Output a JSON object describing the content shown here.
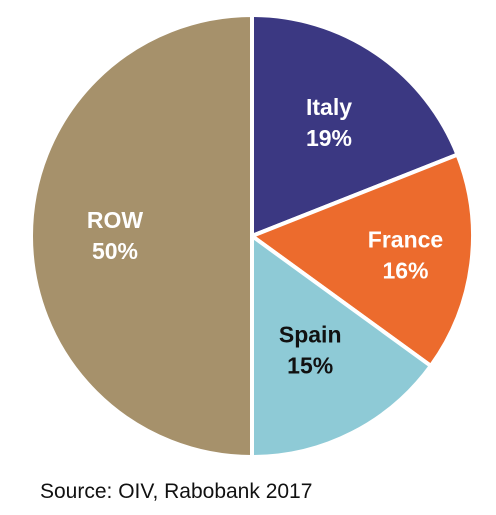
{
  "chart_data": {
    "type": "pie",
    "slices": [
      {
        "label": "Italy",
        "value": 19,
        "value_label": "19%",
        "color": "#3b3882",
        "label_color": "#ffffff"
      },
      {
        "label": "France",
        "value": 16,
        "value_label": "16%",
        "color": "#ec6b2d",
        "label_color": "#ffffff"
      },
      {
        "label": "Spain",
        "value": 15,
        "value_label": "15%",
        "color": "#8ecad6",
        "label_color": "#111111"
      },
      {
        "label": "ROW",
        "value": 50,
        "value_label": "50%",
        "color": "#a6916b",
        "label_color": "#ffffff"
      }
    ],
    "start_angle": "12 o'clock",
    "direction": "clockwise",
    "legend": "none",
    "source": "Source: OIV, Rabobank 2017"
  }
}
